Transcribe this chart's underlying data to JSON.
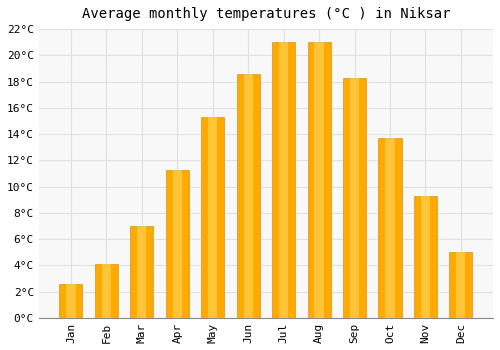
{
  "title": "Average monthly temperatures (°C ) in Niksar",
  "months": [
    "Jan",
    "Feb",
    "Mar",
    "Apr",
    "May",
    "Jun",
    "Jul",
    "Aug",
    "Sep",
    "Oct",
    "Nov",
    "Dec"
  ],
  "values": [
    2.6,
    4.1,
    7.0,
    11.3,
    15.3,
    18.6,
    21.0,
    21.0,
    18.3,
    13.7,
    9.3,
    5.0
  ],
  "bar_color_main": "#FFAA00",
  "bar_color_highlight": "#FFD050",
  "bar_edge_color": "#CC8800",
  "ylim": [
    0,
    22
  ],
  "ytick_step": 2,
  "background_color": "#ffffff",
  "plot_bg_color": "#f8f8f8",
  "grid_color": "#e0e0e0",
  "title_fontsize": 10,
  "tick_fontsize": 8,
  "font_family": "monospace"
}
